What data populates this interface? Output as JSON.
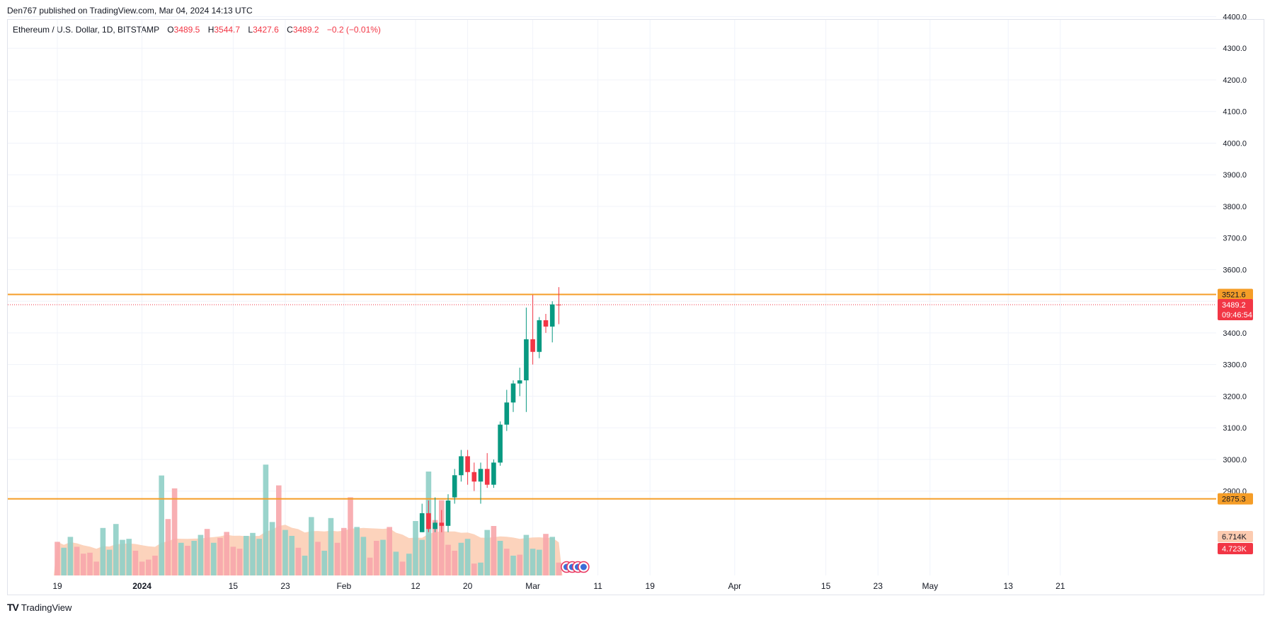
{
  "header": {
    "published": "Den767 published on TradingView.com, Mar 04, 2024 14:13 UTC"
  },
  "legend": {
    "symbol": "Ethereum / U.S. Dollar, 1D, BITSTAMP",
    "o_label": "O",
    "o_value": "3489.5",
    "h_label": "H",
    "h_value": "3544.7",
    "l_label": "L",
    "l_value": "3427.6",
    "c_label": "C",
    "c_value": "3489.2",
    "change": "−0.2 (−0.01%)"
  },
  "footer": {
    "logo_glyph": "TV",
    "brand": "TradingView"
  },
  "colors": {
    "up": "#089981",
    "down": "#f23645",
    "vol_up": "#8fcfc6",
    "vol_down": "#f7a6ab",
    "level": "#f59d27",
    "price_tag": "#f23645",
    "vol_area": "#fccbb0",
    "grid": "#f0f3fa"
  },
  "chart_data": {
    "type": "candlestick",
    "title": "Ethereum / U.S. Dollar, 1D, BITSTAMP",
    "ylim": [
      2770,
      4470
    ],
    "y_ticks": [
      2900,
      3000,
      3100,
      3200,
      3300,
      3400,
      3500,
      3600,
      3700,
      3800,
      3900,
      4000,
      4100,
      4200,
      4300,
      4400
    ],
    "y_tick_labels": [
      "2900.0",
      "3000.0",
      "3100.0",
      "3200.0",
      "3300.0",
      "3400.0",
      "3500.0",
      "3600.0",
      "3700.0",
      "3800.0",
      "3900.0",
      "4000.0",
      "4100.0",
      "4200.0",
      "4300.0",
      "4400.0"
    ],
    "x_ticks": [
      {
        "label": "19",
        "day": 0
      },
      {
        "label": "2024",
        "day": 13,
        "bold": true
      },
      {
        "label": "15",
        "day": 27
      },
      {
        "label": "23",
        "day": 35
      },
      {
        "label": "Feb",
        "day": 44
      },
      {
        "label": "12",
        "day": 55
      },
      {
        "label": "20",
        "day": 63
      },
      {
        "label": "Mar",
        "day": 73
      },
      {
        "label": "11",
        "day": 83
      },
      {
        "label": "19",
        "day": 91
      },
      {
        "label": "Apr",
        "day": 104
      },
      {
        "label": "15",
        "day": 118
      },
      {
        "label": "23",
        "day": 126
      },
      {
        "label": "May",
        "day": 134
      },
      {
        "label": "13",
        "day": 146
      },
      {
        "label": "21",
        "day": 154
      }
    ],
    "candles": [
      {
        "day": 56,
        "o": 2770,
        "h": 2860,
        "l": 2770,
        "c": 2830
      },
      {
        "day": 57,
        "o": 2830,
        "h": 2870,
        "l": 2770,
        "c": 2780
      },
      {
        "day": 58,
        "o": 2780,
        "h": 2880,
        "l": 2770,
        "c": 2800
      },
      {
        "day": 59,
        "o": 2800,
        "h": 2840,
        "l": 2770,
        "c": 2790
      },
      {
        "day": 60,
        "o": 2790,
        "h": 2890,
        "l": 2770,
        "c": 2870
      },
      {
        "day": 61,
        "o": 2880,
        "h": 2970,
        "l": 2860,
        "c": 2950
      },
      {
        "day": 62,
        "o": 2950,
        "h": 3030,
        "l": 2930,
        "c": 3010
      },
      {
        "day": 63,
        "o": 3010,
        "h": 3030,
        "l": 2920,
        "c": 2960
      },
      {
        "day": 64,
        "o": 2960,
        "h": 2990,
        "l": 2900,
        "c": 2930
      },
      {
        "day": 65,
        "o": 2930,
        "h": 2990,
        "l": 2860,
        "c": 2970
      },
      {
        "day": 66,
        "o": 2970,
        "h": 3020,
        "l": 2910,
        "c": 2920
      },
      {
        "day": 67,
        "o": 2920,
        "h": 3000,
        "l": 2910,
        "c": 2990
      },
      {
        "day": 68,
        "o": 2990,
        "h": 3120,
        "l": 2980,
        "c": 3110
      },
      {
        "day": 69,
        "o": 3110,
        "h": 3220,
        "l": 3090,
        "c": 3180
      },
      {
        "day": 70,
        "o": 3180,
        "h": 3250,
        "l": 3150,
        "c": 3240
      },
      {
        "day": 71,
        "o": 3240,
        "h": 3290,
        "l": 3200,
        "c": 3250
      },
      {
        "day": 72,
        "o": 3250,
        "h": 3480,
        "l": 3150,
        "c": 3380
      },
      {
        "day": 73,
        "o": 3380,
        "h": 3520,
        "l": 3300,
        "c": 3340
      },
      {
        "day": 74,
        "o": 3340,
        "h": 3450,
        "l": 3320,
        "c": 3440
      },
      {
        "day": 75,
        "o": 3440,
        "h": 3460,
        "l": 3400,
        "c": 3420
      },
      {
        "day": 76,
        "o": 3420,
        "h": 3500,
        "l": 3370,
        "c": 3490
      },
      {
        "day": 77,
        "o": 3489.5,
        "h": 3544.7,
        "l": 3427.6,
        "c": 3489.2
      }
    ],
    "volume": {
      "max_volume": 100,
      "bars": [
        {
          "day": 0,
          "v": 34,
          "up": false
        },
        {
          "day": 1,
          "v": 28,
          "up": true
        },
        {
          "day": 2,
          "v": 39,
          "up": true
        },
        {
          "day": 3,
          "v": 29,
          "up": false
        },
        {
          "day": 4,
          "v": 22,
          "up": false
        },
        {
          "day": 5,
          "v": 23,
          "up": false
        },
        {
          "day": 6,
          "v": 14,
          "up": false
        },
        {
          "day": 7,
          "v": 48,
          "up": true
        },
        {
          "day": 8,
          "v": 26,
          "up": true
        },
        {
          "day": 9,
          "v": 52,
          "up": true
        },
        {
          "day": 10,
          "v": 36,
          "up": true
        },
        {
          "day": 11,
          "v": 37,
          "up": true
        },
        {
          "day": 12,
          "v": 25,
          "up": false
        },
        {
          "day": 13,
          "v": 14,
          "up": false
        },
        {
          "day": 14,
          "v": 16,
          "up": false
        },
        {
          "day": 15,
          "v": 20,
          "up": false
        },
        {
          "day": 16,
          "v": 101,
          "up": true
        },
        {
          "day": 17,
          "v": 57,
          "up": false
        },
        {
          "day": 18,
          "v": 88,
          "up": false
        },
        {
          "day": 19,
          "v": 33,
          "up": true
        },
        {
          "day": 20,
          "v": 30,
          "up": false
        },
        {
          "day": 21,
          "v": 35,
          "up": true
        },
        {
          "day": 22,
          "v": 41,
          "up": true
        },
        {
          "day": 23,
          "v": 47,
          "up": false
        },
        {
          "day": 24,
          "v": 33,
          "up": true
        },
        {
          "day": 25,
          "v": 38,
          "up": false
        },
        {
          "day": 26,
          "v": 44,
          "up": false
        },
        {
          "day": 27,
          "v": 29,
          "up": false
        },
        {
          "day": 28,
          "v": 27,
          "up": false
        },
        {
          "day": 29,
          "v": 40,
          "up": true
        },
        {
          "day": 30,
          "v": 43,
          "up": true
        },
        {
          "day": 31,
          "v": 37,
          "up": true
        },
        {
          "day": 32,
          "v": 112,
          "up": true
        },
        {
          "day": 33,
          "v": 54,
          "up": true
        },
        {
          "day": 34,
          "v": 91,
          "up": false
        },
        {
          "day": 35,
          "v": 46,
          "up": true
        },
        {
          "day": 36,
          "v": 40,
          "up": true
        },
        {
          "day": 37,
          "v": 28,
          "up": false
        },
        {
          "day": 38,
          "v": 20,
          "up": true
        },
        {
          "day": 39,
          "v": 59,
          "up": true
        },
        {
          "day": 40,
          "v": 34,
          "up": false
        },
        {
          "day": 41,
          "v": 25,
          "up": true
        },
        {
          "day": 42,
          "v": 58,
          "up": true
        },
        {
          "day": 43,
          "v": 33,
          "up": false
        },
        {
          "day": 44,
          "v": 48,
          "up": false
        },
        {
          "day": 45,
          "v": 79,
          "up": false
        },
        {
          "day": 46,
          "v": 49,
          "up": true
        },
        {
          "day": 47,
          "v": 39,
          "up": true
        },
        {
          "day": 48,
          "v": 18,
          "up": false
        },
        {
          "day": 49,
          "v": 35,
          "up": false
        },
        {
          "day": 50,
          "v": 36,
          "up": true
        },
        {
          "day": 51,
          "v": 49,
          "up": false
        },
        {
          "day": 52,
          "v": 24,
          "up": true
        },
        {
          "day": 53,
          "v": 14,
          "up": false
        },
        {
          "day": 54,
          "v": 22,
          "up": true
        },
        {
          "day": 55,
          "v": 55,
          "up": true
        },
        {
          "day": 56,
          "v": 36,
          "up": true
        },
        {
          "day": 57,
          "v": 105,
          "up": true
        },
        {
          "day": 58,
          "v": 56,
          "up": false
        },
        {
          "day": 59,
          "v": 76,
          "up": false
        },
        {
          "day": 60,
          "v": 31,
          "up": false
        },
        {
          "day": 61,
          "v": 25,
          "up": false
        },
        {
          "day": 62,
          "v": 33,
          "up": true
        },
        {
          "day": 63,
          "v": 37,
          "up": true
        },
        {
          "day": 64,
          "v": 12,
          "up": false
        },
        {
          "day": 65,
          "v": 13,
          "up": true
        },
        {
          "day": 66,
          "v": 46,
          "up": true
        },
        {
          "day": 67,
          "v": 50,
          "up": false
        },
        {
          "day": 68,
          "v": 35,
          "up": true
        },
        {
          "day": 69,
          "v": 27,
          "up": false
        },
        {
          "day": 70,
          "v": 20,
          "up": true
        },
        {
          "day": 71,
          "v": 21,
          "up": false
        },
        {
          "day": 72,
          "v": 41,
          "up": true
        },
        {
          "day": 73,
          "v": 27,
          "up": true
        },
        {
          "day": 74,
          "v": 26,
          "up": true
        },
        {
          "day": 75,
          "v": 42,
          "up": false
        },
        {
          "day": 76,
          "v": 39,
          "up": true
        },
        {
          "day": 77,
          "v": 13,
          "up": false
        }
      ]
    },
    "levels": [
      {
        "price": 3521.6,
        "label": "3521.6"
      },
      {
        "price": 2875.3,
        "label": "2875.3"
      }
    ],
    "last_price": {
      "price": 3489.2,
      "label": "3489.2",
      "countdown": "09:46:54"
    },
    "volume_tags": {
      "ma_label": "6.714K",
      "vol_label": "4.723K"
    },
    "event_markers": 4
  }
}
